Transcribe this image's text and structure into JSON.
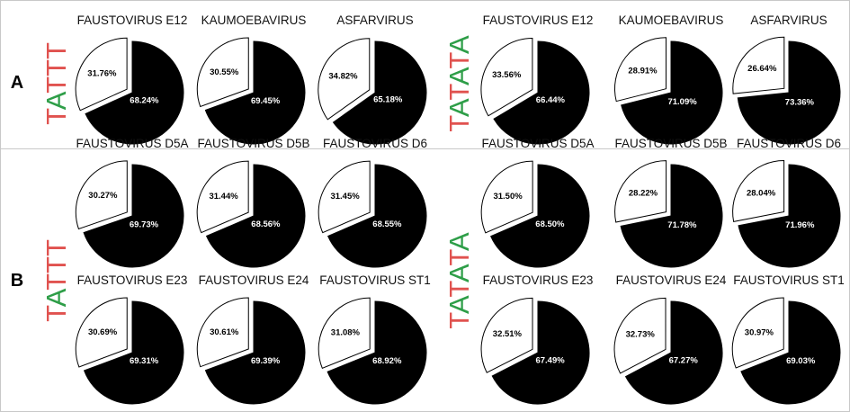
{
  "colors": {
    "A": "#2e9e48",
    "T": "#e0524f",
    "major_slice": "#000000",
    "minor_slice": "#ffffff",
    "border": "#c8c8c8"
  },
  "panels": [
    {
      "label": "A",
      "motifs": [
        "TATTT",
        "TATATA"
      ]
    },
    {
      "label": "B",
      "motifs": [
        "TATTT",
        "TATATA"
      ]
    }
  ],
  "chart_data": [
    {
      "type": "pie",
      "panel": "A",
      "motif": "TATTT",
      "title": "FAUSTOVIRUS E12",
      "labels": [
        "31.76%",
        "68.24%"
      ],
      "values": [
        31.76,
        68.24
      ]
    },
    {
      "type": "pie",
      "panel": "A",
      "motif": "TATTT",
      "title": "KAUMOEBAVIRUS",
      "labels": [
        "30.55%",
        "69.45%"
      ],
      "values": [
        30.55,
        69.45
      ]
    },
    {
      "type": "pie",
      "panel": "A",
      "motif": "TATTT",
      "title": "ASFARVIRUS",
      "labels": [
        "34.82%",
        "65.18%"
      ],
      "values": [
        34.82,
        65.18
      ]
    },
    {
      "type": "pie",
      "panel": "A",
      "motif": "TATATA",
      "title": "FAUSTOVIRUS E12",
      "labels": [
        "33.56%",
        "66.44%"
      ],
      "values": [
        33.56,
        66.44
      ]
    },
    {
      "type": "pie",
      "panel": "A",
      "motif": "TATATA",
      "title": "KAUMOEBAVIRUS",
      "labels": [
        "28.91%",
        "71.09%"
      ],
      "values": [
        28.91,
        71.09
      ]
    },
    {
      "type": "pie",
      "panel": "A",
      "motif": "TATATA",
      "title": "ASFARVIRUS",
      "labels": [
        "26.64%",
        "73.36%"
      ],
      "values": [
        26.64,
        73.36
      ]
    },
    {
      "type": "pie",
      "panel": "B",
      "motif": "TATTT",
      "title": "FAUSTOVIRUS D5A",
      "labels": [
        "30.27%",
        "69.73%"
      ],
      "values": [
        30.27,
        69.73
      ]
    },
    {
      "type": "pie",
      "panel": "B",
      "motif": "TATTT",
      "title": "FAUSTOVIRUS D5B",
      "labels": [
        "31.44%",
        "68.56%"
      ],
      "values": [
        31.44,
        68.56
      ]
    },
    {
      "type": "pie",
      "panel": "B",
      "motif": "TATTT",
      "title": "FAUSTOVIRUS D6",
      "labels": [
        "31.45%",
        "68.55%"
      ],
      "values": [
        31.45,
        68.55
      ]
    },
    {
      "type": "pie",
      "panel": "B",
      "motif": "TATTT",
      "title": "FAUSTOVIRUS E23",
      "labels": [
        "30.69%",
        "69.31%"
      ],
      "values": [
        30.69,
        69.31
      ]
    },
    {
      "type": "pie",
      "panel": "B",
      "motif": "TATTT",
      "title": "FAUSTOVIRUS E24",
      "labels": [
        "30.61%",
        "69.39%"
      ],
      "values": [
        30.61,
        69.39
      ]
    },
    {
      "type": "pie",
      "panel": "B",
      "motif": "TATTT",
      "title": "FAUSTOVIRUS ST1",
      "labels": [
        "31.08%",
        "68.92%"
      ],
      "values": [
        31.08,
        68.92
      ]
    },
    {
      "type": "pie",
      "panel": "B",
      "motif": "TATATA",
      "title": "FAUSTOVIRUS D5A",
      "labels": [
        "31.50%",
        "68.50%"
      ],
      "values": [
        31.5,
        68.5
      ]
    },
    {
      "type": "pie",
      "panel": "B",
      "motif": "TATATA",
      "title": "FAUSTOVIRUS D5B",
      "labels": [
        "28.22%",
        "71.78%"
      ],
      "values": [
        28.22,
        71.78
      ]
    },
    {
      "type": "pie",
      "panel": "B",
      "motif": "TATATA",
      "title": "FAUSTOVIRUS D6",
      "labels": [
        "28.04%",
        "71.96%"
      ],
      "values": [
        28.04,
        71.96
      ]
    },
    {
      "type": "pie",
      "panel": "B",
      "motif": "TATATA",
      "title": "FAUSTOVIRUS E23",
      "labels": [
        "32.51%",
        "67.49%"
      ],
      "values": [
        32.51,
        67.49
      ]
    },
    {
      "type": "pie",
      "panel": "B",
      "motif": "TATATA",
      "title": "FAUSTOVIRUS E24",
      "labels": [
        "32.73%",
        "67.27%"
      ],
      "values": [
        32.73,
        67.27
      ]
    },
    {
      "type": "pie",
      "panel": "B",
      "motif": "TATATA",
      "title": "FAUSTOVIRUS ST1",
      "labels": [
        "30.97%",
        "69.03%"
      ],
      "values": [
        30.97,
        69.03
      ]
    }
  ]
}
